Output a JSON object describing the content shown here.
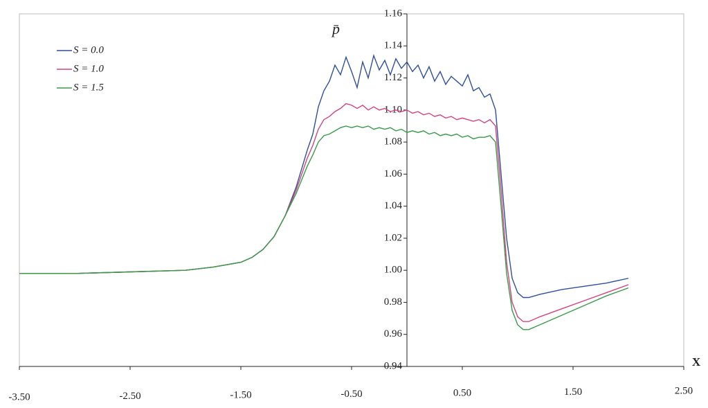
{
  "chart_data": {
    "type": "line",
    "y_label": "p̄",
    "x_label": "X",
    "x": [
      -3.5,
      -3,
      -2.5,
      -2,
      -1.75,
      -1.5,
      -1.4,
      -1.3,
      -1.2,
      -1.1,
      -1,
      -0.9,
      -0.85,
      -0.8,
      -0.75,
      -0.7,
      -0.65,
      -0.6,
      -0.55,
      -0.5,
      -0.45,
      -0.4,
      -0.35,
      -0.3,
      -0.25,
      -0.2,
      -0.15,
      -0.1,
      -0.05,
      0,
      0.05,
      0.1,
      0.15,
      0.2,
      0.25,
      0.3,
      0.35,
      0.4,
      0.45,
      0.5,
      0.55,
      0.6,
      0.65,
      0.7,
      0.75,
      0.8,
      0.85,
      0.9,
      0.95,
      1,
      1.05,
      1.1,
      1.2,
      1.4,
      1.6,
      1.8,
      2
    ],
    "series": [
      {
        "name": "S = 0.0",
        "color": "#2f4f9a",
        "values": [
          0.998,
          0.998,
          0.999,
          1.0,
          1.002,
          1.005,
          1.008,
          1.013,
          1.021,
          1.034,
          1.052,
          1.075,
          1.085,
          1.102,
          1.112,
          1.118,
          1.128,
          1.122,
          1.133,
          1.124,
          1.114,
          1.13,
          1.12,
          1.134,
          1.125,
          1.131,
          1.122,
          1.132,
          1.126,
          1.13,
          1.124,
          1.128,
          1.12,
          1.127,
          1.118,
          1.124,
          1.116,
          1.121,
          1.118,
          1.115,
          1.122,
          1.112,
          1.114,
          1.108,
          1.11,
          1.1,
          1.06,
          1.02,
          0.995,
          0.986,
          0.983,
          0.983,
          0.985,
          0.988,
          0.99,
          0.992,
          0.995
        ]
      },
      {
        "name": "S = 1.0",
        "color": "#d0457f",
        "values": [
          0.998,
          0.998,
          0.999,
          1.0,
          1.002,
          1.005,
          1.008,
          1.013,
          1.021,
          1.034,
          1.05,
          1.07,
          1.078,
          1.088,
          1.094,
          1.096,
          1.099,
          1.101,
          1.104,
          1.103,
          1.101,
          1.103,
          1.1,
          1.102,
          1.1,
          1.101,
          1.099,
          1.1,
          1.099,
          1.1,
          1.098,
          1.099,
          1.097,
          1.098,
          1.096,
          1.097,
          1.095,
          1.096,
          1.094,
          1.095,
          1.094,
          1.093,
          1.094,
          1.092,
          1.094,
          1.09,
          1.05,
          1.005,
          0.98,
          0.971,
          0.968,
          0.968,
          0.971,
          0.976,
          0.981,
          0.986,
          0.991
        ]
      },
      {
        "name": "S = 1.5",
        "color": "#3a9a4a",
        "values": [
          0.998,
          0.998,
          0.999,
          1.0,
          1.002,
          1.005,
          1.008,
          1.013,
          1.021,
          1.034,
          1.048,
          1.065,
          1.072,
          1.08,
          1.084,
          1.085,
          1.087,
          1.089,
          1.09,
          1.089,
          1.09,
          1.089,
          1.09,
          1.088,
          1.089,
          1.088,
          1.089,
          1.087,
          1.088,
          1.086,
          1.087,
          1.086,
          1.087,
          1.085,
          1.086,
          1.084,
          1.085,
          1.084,
          1.085,
          1.083,
          1.084,
          1.082,
          1.083,
          1.083,
          1.084,
          1.08,
          1.04,
          0.998,
          0.975,
          0.966,
          0.963,
          0.963,
          0.966,
          0.972,
          0.978,
          0.984,
          0.989
        ]
      }
    ],
    "xlim": [
      -3.5,
      2.5
    ],
    "xticks": [
      {
        "value": -3.5,
        "label": "-3.50"
      },
      {
        "value": -2.5,
        "label": "-2.50"
      },
      {
        "value": -1.5,
        "label": "-1.50"
      },
      {
        "value": -0.5,
        "label": "-0.50"
      },
      {
        "value": 0.5,
        "label": "0.50"
      },
      {
        "value": 1.5,
        "label": "1.50"
      },
      {
        "value": 2.5,
        "label": "2.50"
      }
    ],
    "ylim": [
      0.94,
      1.16
    ],
    "yticks": [
      {
        "value": 0.94,
        "label": "0.94"
      },
      {
        "value": 0.96,
        "label": "0.96"
      },
      {
        "value": 0.98,
        "label": "0.98"
      },
      {
        "value": 1.0,
        "label": "1.00"
      },
      {
        "value": 1.02,
        "label": "1.02"
      },
      {
        "value": 1.04,
        "label": "1.04"
      },
      {
        "value": 1.06,
        "label": "1.06"
      },
      {
        "value": 1.08,
        "label": "1.08"
      },
      {
        "value": 1.1,
        "label": "1.10"
      },
      {
        "value": 1.12,
        "label": "1.12"
      },
      {
        "value": 1.14,
        "label": "1.14"
      },
      {
        "value": 1.16,
        "label": "1.16"
      }
    ],
    "legend": "upper left"
  }
}
